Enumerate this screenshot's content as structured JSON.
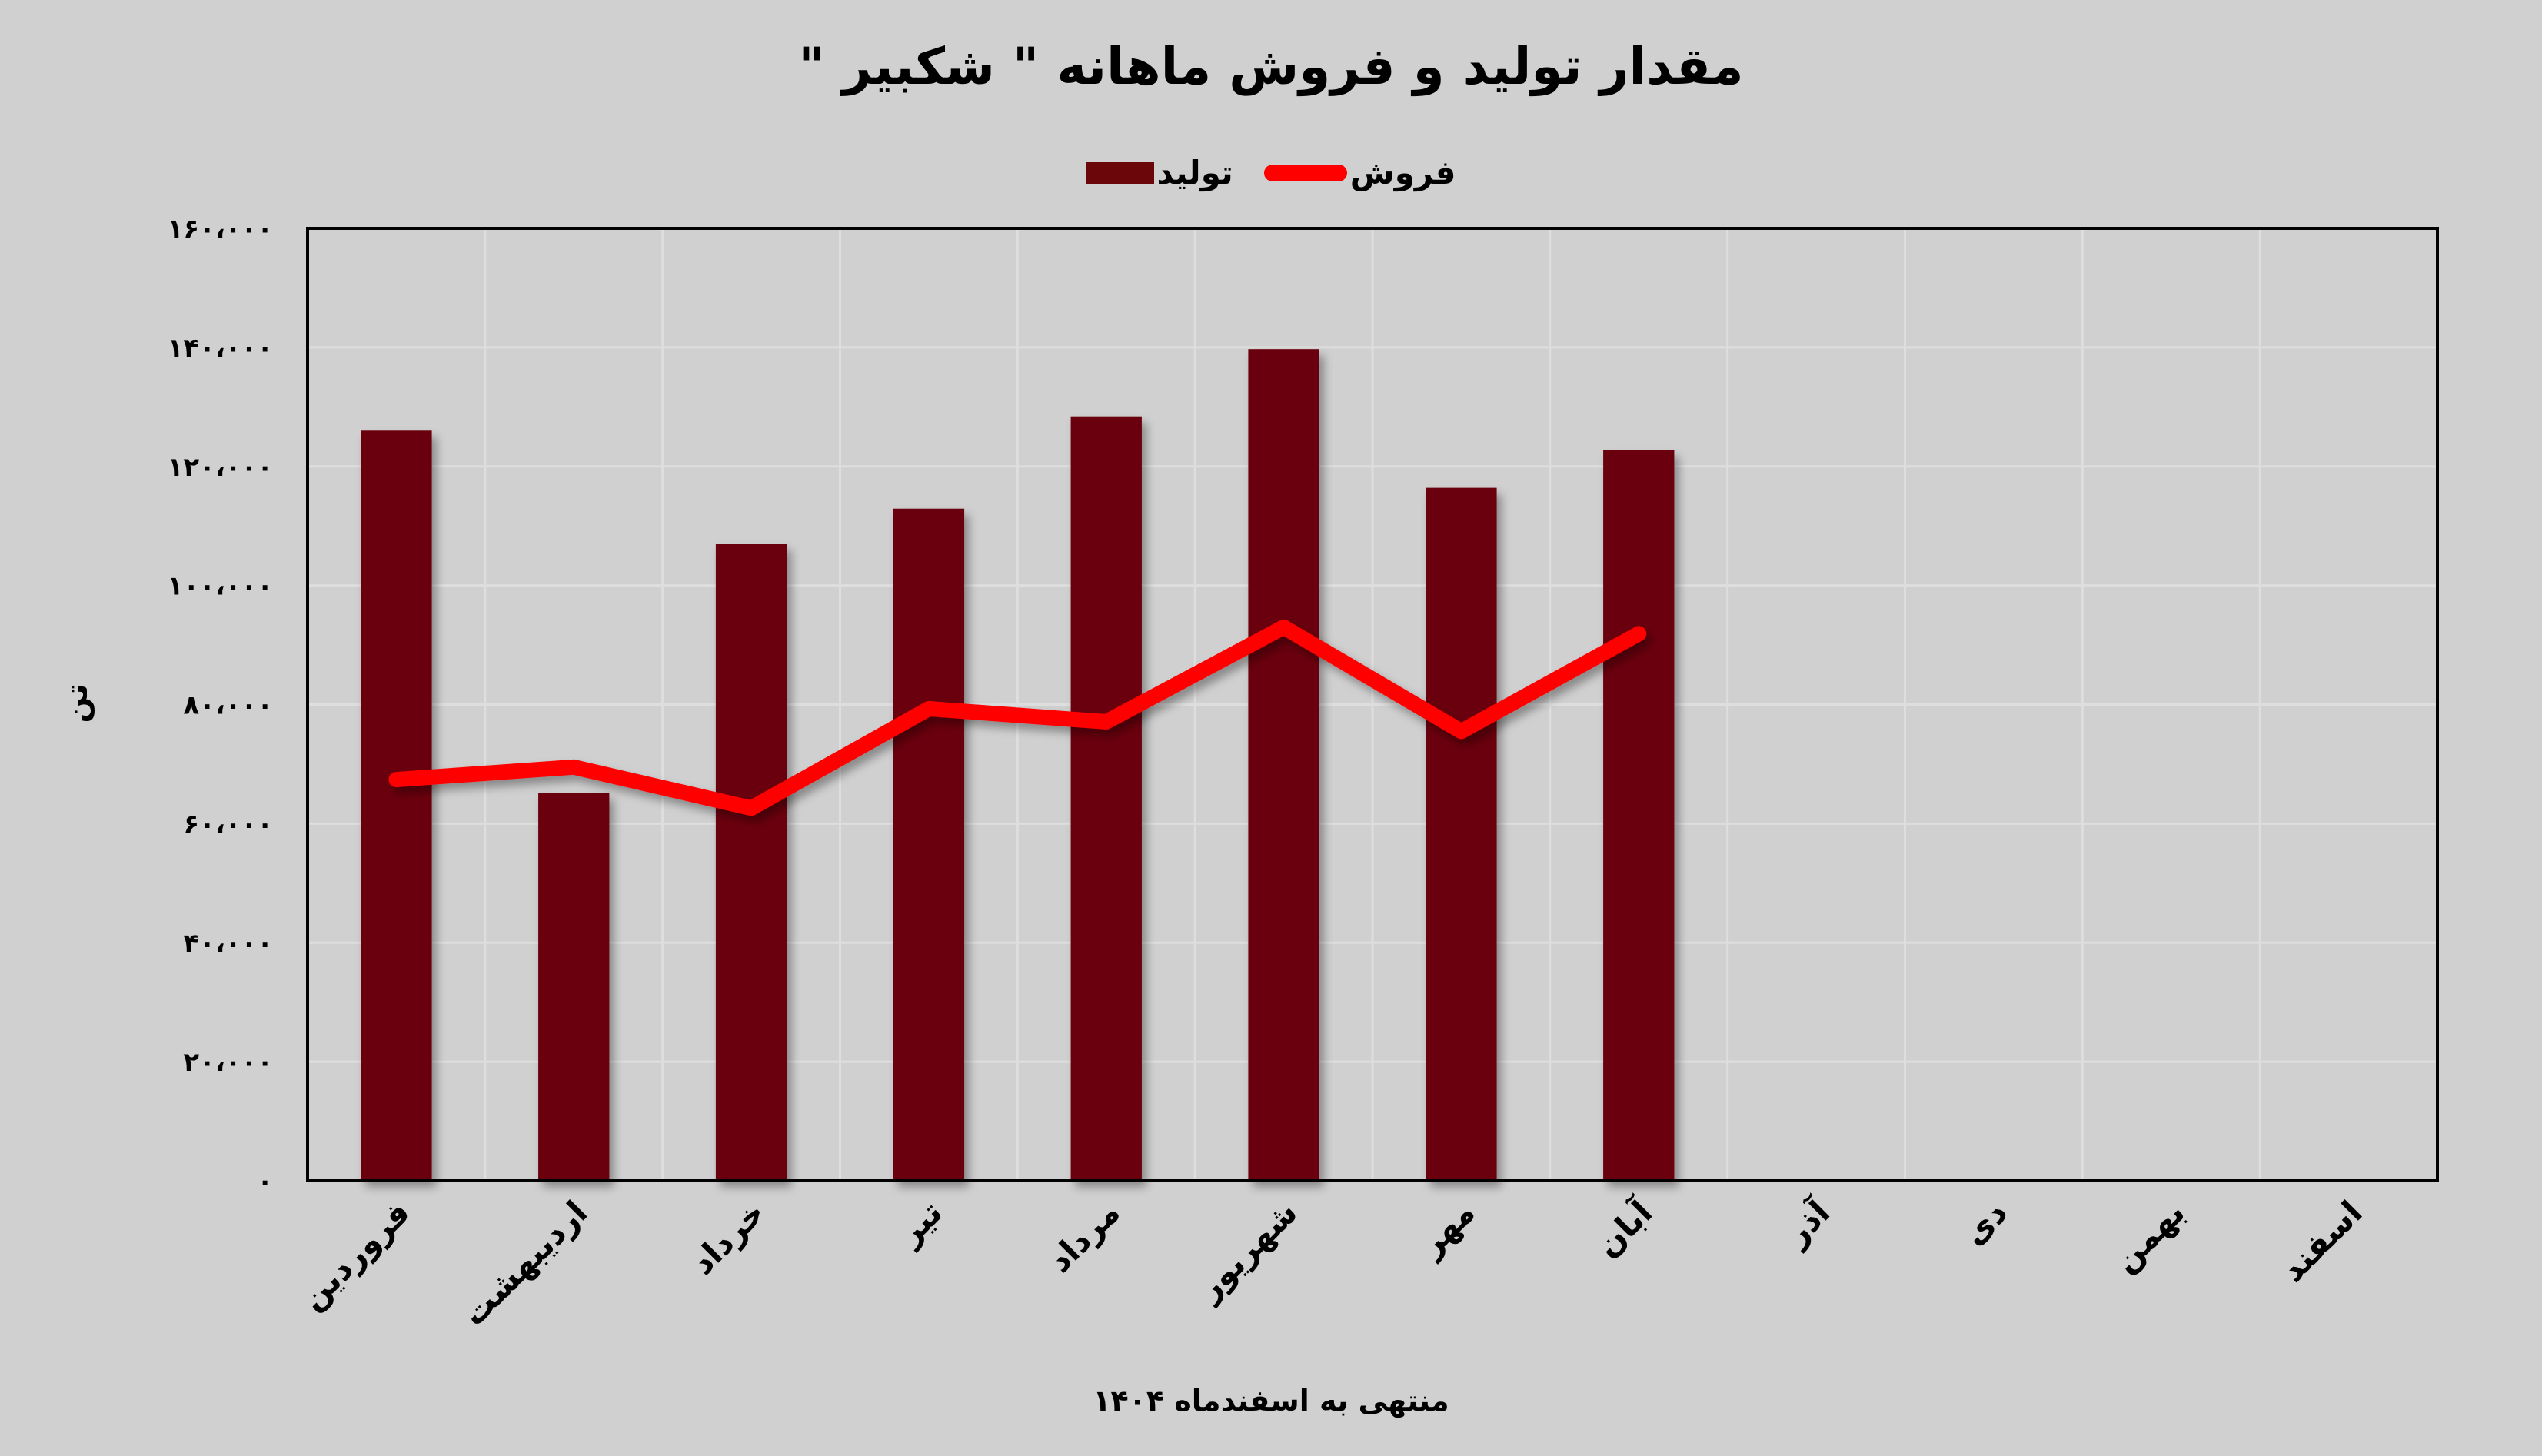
{
  "title": "مقدار تولید و فروش ماهانه \" شکبیر \"",
  "legend": [
    {
      "label": "فروش",
      "type": "line",
      "color": "#ff0000"
    },
    {
      "label": "تولید",
      "type": "bar",
      "color": "#6b060b"
    }
  ],
  "y_axis_title": "تن",
  "x_axis_title": "منتهی به اسفندماه ۱۴۰۴",
  "colors": {
    "background": "#d0d0d0",
    "bar": "#6b060b",
    "line": "#ff0000",
    "gridline": "#dedede",
    "axis": "#000000"
  },
  "chart_data": {
    "type": "bar",
    "title": "مقدار تولید و فروش ماهانه \" شکبیر \"",
    "xlabel": "منتهی به اسفندماه ۱۴۰۴",
    "ylabel": "تن",
    "ylim": [
      0,
      160000
    ],
    "yticks": [
      0,
      20000,
      40000,
      60000,
      80000,
      100000,
      120000,
      140000,
      160000
    ],
    "ytick_labels": [
      "۰",
      "۲۰،۰۰۰",
      "۴۰،۰۰۰",
      "۶۰،۰۰۰",
      "۸۰،۰۰۰",
      "۱۰۰،۰۰۰",
      "۱۲۰،۰۰۰",
      "۱۴۰،۰۰۰",
      "۱۶۰،۰۰۰"
    ],
    "grid": true,
    "legend_position": "top",
    "categories": [
      "فروردین",
      "اردیبهشت",
      "خرداد",
      "تیر",
      "مرداد",
      "شهریور",
      "مهر",
      "آبان",
      "آذر",
      "دی",
      "بهمن",
      "اسفند"
    ],
    "series": [
      {
        "name": "تولید",
        "type": "bar",
        "color": "#6b060b",
        "values": [
          126000,
          65100,
          107000,
          112900,
          128400,
          139700,
          116400,
          122700,
          null,
          null,
          null,
          null
        ]
      },
      {
        "name": "فروش",
        "type": "line",
        "color": "#ff0000",
        "values": [
          67400,
          69500,
          62600,
          79300,
          77100,
          93000,
          75500,
          91900,
          null,
          null,
          null,
          null
        ]
      }
    ]
  }
}
